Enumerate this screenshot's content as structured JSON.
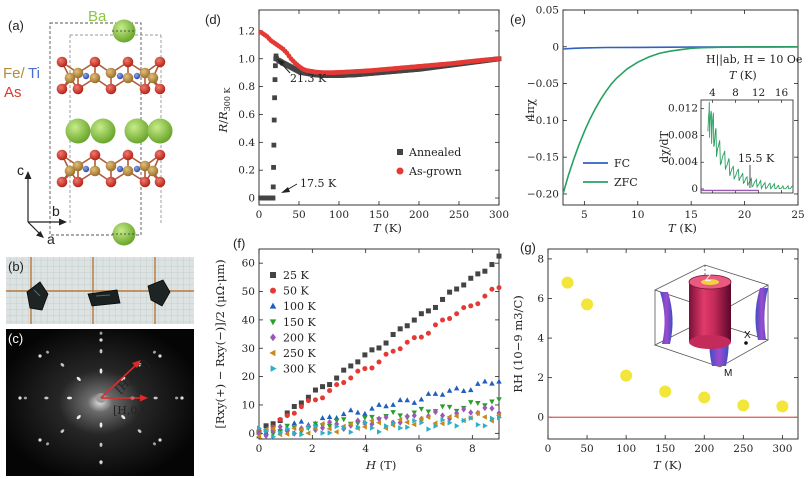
{
  "panel_labels": [
    "(a)",
    "(b)",
    "(c)",
    "(d)",
    "(e)",
    "(f)",
    "(g)"
  ],
  "structure": {
    "label_ba": "Ba",
    "label_fe": "Fe/",
    "label_ti": "Ti",
    "label_as": "As",
    "axis_c": "c",
    "axis_b": "b",
    "axis_a": "a",
    "colors": {
      "ba": "#8cc63f",
      "fe": "#b8893a",
      "ti": "#4a6fd0",
      "as": "#d63a2a"
    }
  },
  "diffraction": {
    "label_hh0": "[H,H,0]",
    "label_h00": "[H,0,0]"
  },
  "chart_data": [
    {
      "id": "d",
      "type": "scatter",
      "xlabel": "T (K)",
      "ylabel": "R/R300 K",
      "xlim": [
        0,
        300
      ],
      "ylim": [
        -0.05,
        1.35
      ],
      "xticks": [
        "0",
        "50",
        "100",
        "150",
        "200",
        "250",
        "300"
      ],
      "yticks": [
        "0",
        "0.2",
        "0.4",
        "0.6",
        "0.8",
        "1.0",
        "1.2"
      ],
      "xtick_vals": [
        0,
        50,
        100,
        150,
        200,
        250,
        300
      ],
      "ytick_vals": [
        0,
        0.2,
        0.4,
        0.6,
        0.8,
        1.0,
        1.2
      ],
      "annotations": [
        "21.3 K",
        "17.5 K"
      ],
      "series": [
        {
          "name": "Annealed",
          "color": "#444444",
          "marker": "square",
          "x": [
            2,
            5,
            8,
            11,
            14,
            16,
            17,
            17.5,
            17.8,
            18.2,
            18.6,
            19,
            19.5,
            20,
            20.5,
            21,
            21.3,
            22,
            24,
            27,
            30,
            35,
            40,
            45,
            50,
            55,
            60,
            70,
            80,
            90,
            100,
            120,
            140,
            160,
            180,
            200,
            220,
            240,
            260,
            280,
            300
          ],
          "y": [
            0,
            0,
            0,
            0,
            0,
            0,
            0,
            0,
            0.08,
            0.22,
            0.38,
            0.56,
            0.72,
            0.85,
            0.95,
            1.0,
            1.02,
            1.0,
            0.99,
            0.98,
            0.97,
            0.955,
            0.94,
            0.925,
            0.91,
            0.9,
            0.895,
            0.885,
            0.88,
            0.88,
            0.88,
            0.885,
            0.895,
            0.905,
            0.915,
            0.925,
            0.94,
            0.955,
            0.97,
            0.985,
            1.0
          ]
        },
        {
          "name": "As-grown",
          "color": "#e53935",
          "marker": "circle",
          "x": [
            2,
            5,
            10,
            15,
            20,
            25,
            30,
            35,
            40,
            45,
            50,
            55,
            60,
            70,
            80,
            90,
            100,
            120,
            140,
            160,
            180,
            200,
            220,
            240,
            260,
            280,
            300
          ],
          "y": [
            1.19,
            1.18,
            1.16,
            1.13,
            1.11,
            1.09,
            1.07,
            1.04,
            1.0,
            0.97,
            0.945,
            0.925,
            0.915,
            0.905,
            0.9,
            0.9,
            0.902,
            0.908,
            0.915,
            0.925,
            0.935,
            0.945,
            0.955,
            0.965,
            0.978,
            0.99,
            1.0
          ]
        }
      ],
      "legend": [
        "Annealed",
        "As-grown"
      ]
    },
    {
      "id": "e",
      "type": "line",
      "xlabel": "T (K)",
      "ylabel": "4πχ",
      "xlim": [
        3,
        25
      ],
      "ylim": [
        -0.215,
        0.05
      ],
      "xticks": [
        "5",
        "10",
        "15",
        "20",
        "25"
      ],
      "yticks": [
        "0.05",
        "0",
        "−0.05",
        "−0.10",
        "−0.15",
        "−0.20"
      ],
      "xtick_vals": [
        5,
        10,
        15,
        20,
        25
      ],
      "ytick_vals": [
        0.05,
        0,
        -0.05,
        -0.1,
        -0.15,
        -0.2
      ],
      "condition": "H||ab, H = 10 Oe",
      "series": [
        {
          "name": "FC",
          "color": "#3060c0",
          "x": [
            3,
            4,
            5,
            7,
            10,
            13,
            16,
            19,
            22,
            25
          ],
          "y": [
            -0.003,
            -0.002,
            -0.0015,
            -0.001,
            -0.0008,
            -0.0005,
            -0.0003,
            -0.0002,
            -0.0001,
            0
          ]
        },
        {
          "name": "ZFC",
          "color": "#2aa060",
          "x": [
            3,
            3.5,
            4,
            4.5,
            5,
            5.5,
            6,
            6.5,
            7,
            7.5,
            8,
            9,
            10,
            11,
            12,
            13,
            14,
            15,
            16,
            17,
            18,
            20,
            22,
            25
          ],
          "y": [
            -0.2,
            -0.175,
            -0.153,
            -0.133,
            -0.115,
            -0.099,
            -0.085,
            -0.072,
            -0.061,
            -0.051,
            -0.043,
            -0.03,
            -0.021,
            -0.014,
            -0.009,
            -0.006,
            -0.004,
            -0.002,
            -0.0012,
            -0.0008,
            -0.0005,
            -0.0002,
            -0.0001,
            0
          ]
        }
      ],
      "legend": [
        "FC",
        "ZFC"
      ],
      "inset": {
        "xlabel": "T (K)",
        "ylabel": "dχ/dT",
        "xlim": [
          2,
          18
        ],
        "ylim": [
          -0.0006,
          0.0133
        ],
        "xticks": [
          "4",
          "8",
          "12",
          "16"
        ],
        "yticks": [
          "0.012",
          "0.008",
          "0.004",
          "0"
        ],
        "xtick_vals": [
          4,
          8,
          12,
          16
        ],
        "ytick_vals": [
          0.012,
          0.008,
          0.004,
          0
        ],
        "annotation": "15.5 K",
        "x": [
          3.2,
          3.4,
          3.6,
          3.8,
          4,
          4.3,
          4.6,
          5,
          5.5,
          6,
          6.5,
          7,
          7.5,
          8,
          8.5,
          9,
          9.5,
          10,
          10.5,
          11,
          11.5,
          12,
          12.5,
          13,
          13.5,
          14,
          14.5,
          15,
          15.5,
          16,
          16.5,
          17,
          17.5,
          18
        ],
        "y": [
          0.0125,
          0.0105,
          0.0118,
          0.009,
          0.0098,
          0.0082,
          0.0075,
          0.0065,
          0.0054,
          0.0045,
          0.0039,
          0.0033,
          0.0028,
          0.0024,
          0.0021,
          0.0018,
          0.0015,
          0.0013,
          0.0012,
          0.001,
          0.0009,
          0.0008,
          0.0007,
          0.0006,
          0.0005,
          0.0004,
          0.0004,
          0.0003,
          0.0002,
          0.0002,
          0.0001,
          0.0001,
          0.0001,
          0.0001
        ]
      }
    },
    {
      "id": "f",
      "type": "scatter",
      "xlabel": "H (T)",
      "ylabel": "[Rxy(+) − Rxy(−)]/2 (μΩ·μm)",
      "xlim": [
        0,
        9
      ],
      "ylim": [
        -2,
        65
      ],
      "xticks": [
        "0",
        "2",
        "4",
        "6",
        "8"
      ],
      "yticks": [
        "0",
        "10",
        "20",
        "30",
        "40",
        "50",
        "60"
      ],
      "xtick_vals": [
        0,
        2,
        4,
        6,
        8
      ],
      "ytick_vals": [
        0,
        10,
        20,
        30,
        40,
        50,
        60
      ],
      "legend": [
        "25 K",
        "50 K",
        "100 K",
        "150 K",
        "200 K",
        "250 K",
        "300 K"
      ],
      "series": [
        {
          "name": "25 K",
          "color": "#444444",
          "marker": "square",
          "slope": 6.85
        },
        {
          "name": "50 K",
          "color": "#e53935",
          "marker": "circle",
          "slope": 5.7
        },
        {
          "name": "100 K",
          "color": "#1f5fbf",
          "marker": "triangle-up",
          "slope": 2.05
        },
        {
          "name": "150 K",
          "color": "#2aa02a",
          "marker": "triangle-down",
          "slope": 1.25
        },
        {
          "name": "200 K",
          "color": "#9b59b6",
          "marker": "diamond",
          "slope": 0.95
        },
        {
          "name": "250 K",
          "color": "#c9891a",
          "marker": "triangle-left",
          "slope": 0.7
        },
        {
          "name": "300 K",
          "color": "#2ab0c8",
          "marker": "triangle-right",
          "slope": 0.5
        }
      ]
    },
    {
      "id": "g",
      "type": "scatter",
      "xlabel": "T (K)",
      "ylabel": "RH (10−9 m3/C)",
      "xlim": [
        0,
        320
      ],
      "ylim": [
        -1.1,
        8.5
      ],
      "xticks": [
        "0",
        "50",
        "100",
        "150",
        "200",
        "250",
        "300"
      ],
      "yticks": [
        "0",
        "2",
        "4",
        "6",
        "8"
      ],
      "xtick_vals": [
        0,
        50,
        100,
        150,
        200,
        250,
        300
      ],
      "ytick_vals": [
        0,
        2,
        4,
        6,
        8
      ],
      "zero_line_color": "#e05a5a",
      "series": [
        {
          "name": "RH",
          "color": "#f2e63a",
          "x": [
            25,
            50,
            100,
            150,
            200,
            250,
            300
          ],
          "y": [
            6.8,
            5.7,
            2.1,
            1.3,
            1.0,
            0.6,
            0.55
          ]
        }
      ],
      "inset_labels": [
        "Z",
        "X",
        "M"
      ]
    }
  ]
}
